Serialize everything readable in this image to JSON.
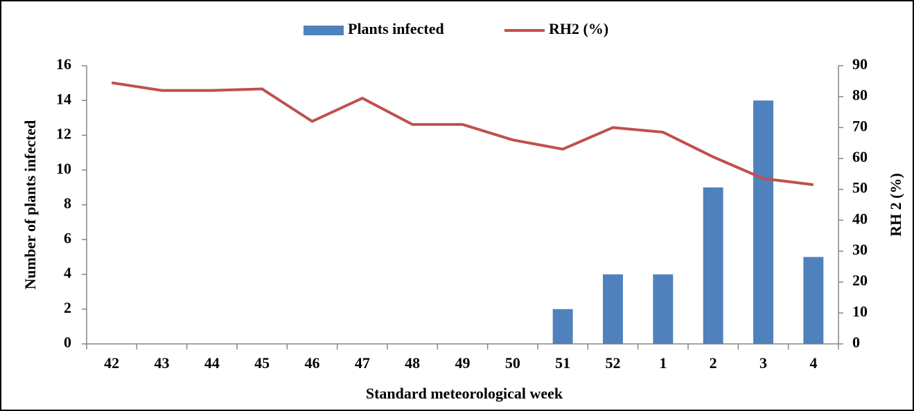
{
  "chart_data": {
    "type": "bar_line",
    "categories": [
      "42",
      "43",
      "44",
      "45",
      "46",
      "47",
      "48",
      "49",
      "50",
      "51",
      "52",
      "1",
      "2",
      "3",
      "4"
    ],
    "series": [
      {
        "name": "Plants infected",
        "type": "bar",
        "color": "#4f81bd",
        "axis": "y",
        "values": [
          0,
          0,
          0,
          0,
          0,
          0,
          0,
          0,
          0,
          2,
          4,
          4,
          9,
          14,
          5
        ]
      },
      {
        "name": "RH2 (%)",
        "type": "line",
        "color": "#c0504d",
        "axis": "y2",
        "values": [
          84.5,
          82,
          82,
          82.5,
          72,
          79.5,
          71,
          71,
          66,
          63,
          70,
          68.5,
          60.5,
          53.5,
          51.5
        ]
      }
    ],
    "xlabel": "Standard meteorological week",
    "ylabel": "Number of plants infected",
    "y2label": "RH 2 (%)",
    "ylim": [
      0,
      16
    ],
    "yticks": [
      0,
      2,
      4,
      6,
      8,
      10,
      12,
      14,
      16
    ],
    "y2lim": [
      0,
      90
    ],
    "y2ticks": [
      0,
      10,
      20,
      30,
      40,
      50,
      60,
      70,
      80,
      90
    ],
    "legend": "top"
  }
}
